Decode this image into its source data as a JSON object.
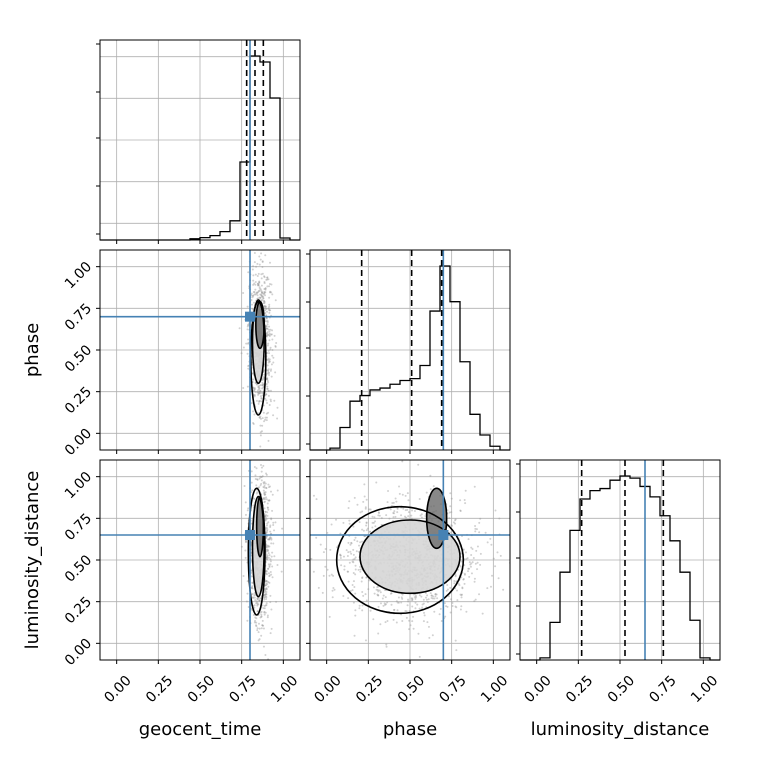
{
  "chart_data": {
    "type": "corner",
    "parameters": [
      "geocent_time",
      "phase",
      "luminosity_distance"
    ],
    "axis_labels": {
      "x": [
        "geocent_time",
        "phase",
        "luminosity_distance"
      ],
      "y": [
        "phase",
        "luminosity_distance"
      ]
    },
    "range": [
      -0.1,
      1.1
    ],
    "ticks": [
      0.0,
      0.25,
      0.5,
      0.75,
      1.0
    ],
    "tick_labels": [
      "0.00",
      "0.25",
      "0.50",
      "0.75",
      "1.00"
    ],
    "grid": true,
    "truths": {
      "geocent_time": 0.8,
      "phase": 0.7,
      "luminosity_distance": 0.65
    },
    "colors": {
      "truth": "#4682b4",
      "hist": "#000000",
      "grid": "#b0b0b0",
      "points": "#9a9a9a"
    },
    "histograms": [
      {
        "parameter": "geocent_time",
        "bin_edges": [
          -0.1,
          -0.04,
          0.02,
          0.08,
          0.14,
          0.2,
          0.26,
          0.32,
          0.38,
          0.44,
          0.5,
          0.56,
          0.62,
          0.68,
          0.74,
          0.8,
          0.86,
          0.92,
          0.98,
          1.04,
          1.1
        ],
        "counts": [
          0,
          0,
          0,
          0,
          0,
          0,
          0,
          0,
          0,
          0.3,
          0.6,
          1.1,
          2.1,
          4.8,
          19.5,
          46.0,
          44.5,
          35.5,
          0.5,
          0
        ],
        "quantiles": [
          0.78,
          0.83,
          0.88
        ]
      },
      {
        "parameter": "phase",
        "bin_edges": [
          -0.1,
          -0.04,
          0.02,
          0.08,
          0.14,
          0.2,
          0.26,
          0.32,
          0.38,
          0.44,
          0.5,
          0.56,
          0.62,
          0.68,
          0.74,
          0.8,
          0.86,
          0.92,
          0.98,
          1.04,
          1.1
        ],
        "counts": [
          0,
          0,
          1,
          12,
          26,
          29,
          32,
          33,
          35,
          37,
          38,
          45,
          74,
          98,
          79,
          47,
          19,
          8,
          2,
          0
        ],
        "quantiles": [
          0.21,
          0.51,
          0.69
        ]
      },
      {
        "parameter": "luminosity_distance",
        "bin_edges": [
          -0.1,
          -0.04,
          0.02,
          0.08,
          0.14,
          0.2,
          0.26,
          0.32,
          0.38,
          0.44,
          0.5,
          0.56,
          0.62,
          0.68,
          0.74,
          0.8,
          0.86,
          0.92,
          0.98,
          1.04,
          1.1
        ],
        "counts": [
          0,
          0,
          1,
          18,
          42,
          62,
          77,
          81,
          82,
          86,
          88,
          87,
          83,
          78,
          69,
          57,
          42,
          19,
          1,
          0
        ],
        "quantiles": [
          0.27,
          0.53,
          0.76
        ]
      }
    ],
    "joint": [
      {
        "x": "geocent_time",
        "y": "phase",
        "point_cloud": {
          "n": 900,
          "mean_x": 0.86,
          "sd_x": 0.035,
          "mean_y": 0.55,
          "sd_y": 0.22
        },
        "contours": [
          {
            "cx": 0.85,
            "cy": 0.45,
            "rx": 0.045,
            "ry": 0.34
          },
          {
            "cx": 0.85,
            "cy": 0.55,
            "rx": 0.035,
            "ry": 0.25
          },
          {
            "cx": 0.86,
            "cy": 0.65,
            "rx": 0.025,
            "ry": 0.14
          }
        ]
      },
      {
        "x": "geocent_time",
        "y": "luminosity_distance",
        "point_cloud": {
          "n": 900,
          "mean_x": 0.86,
          "sd_x": 0.035,
          "mean_y": 0.55,
          "sd_y": 0.22
        },
        "contours": [
          {
            "cx": 0.84,
            "cy": 0.55,
            "rx": 0.05,
            "ry": 0.38
          },
          {
            "cx": 0.85,
            "cy": 0.58,
            "rx": 0.035,
            "ry": 0.3
          },
          {
            "cx": 0.86,
            "cy": 0.7,
            "rx": 0.02,
            "ry": 0.18
          }
        ]
      },
      {
        "x": "phase",
        "y": "luminosity_distance",
        "point_cloud": {
          "n": 1200,
          "mean_x": 0.5,
          "sd_x": 0.22,
          "mean_y": 0.5,
          "sd_y": 0.18
        },
        "contours": [
          {
            "cx": 0.44,
            "cy": 0.5,
            "rx": 0.38,
            "ry": 0.32
          },
          {
            "cx": 0.5,
            "cy": 0.52,
            "rx": 0.3,
            "ry": 0.22
          },
          {
            "cx": 0.66,
            "cy": 0.75,
            "rx": 0.06,
            "ry": 0.18
          }
        ]
      }
    ]
  }
}
